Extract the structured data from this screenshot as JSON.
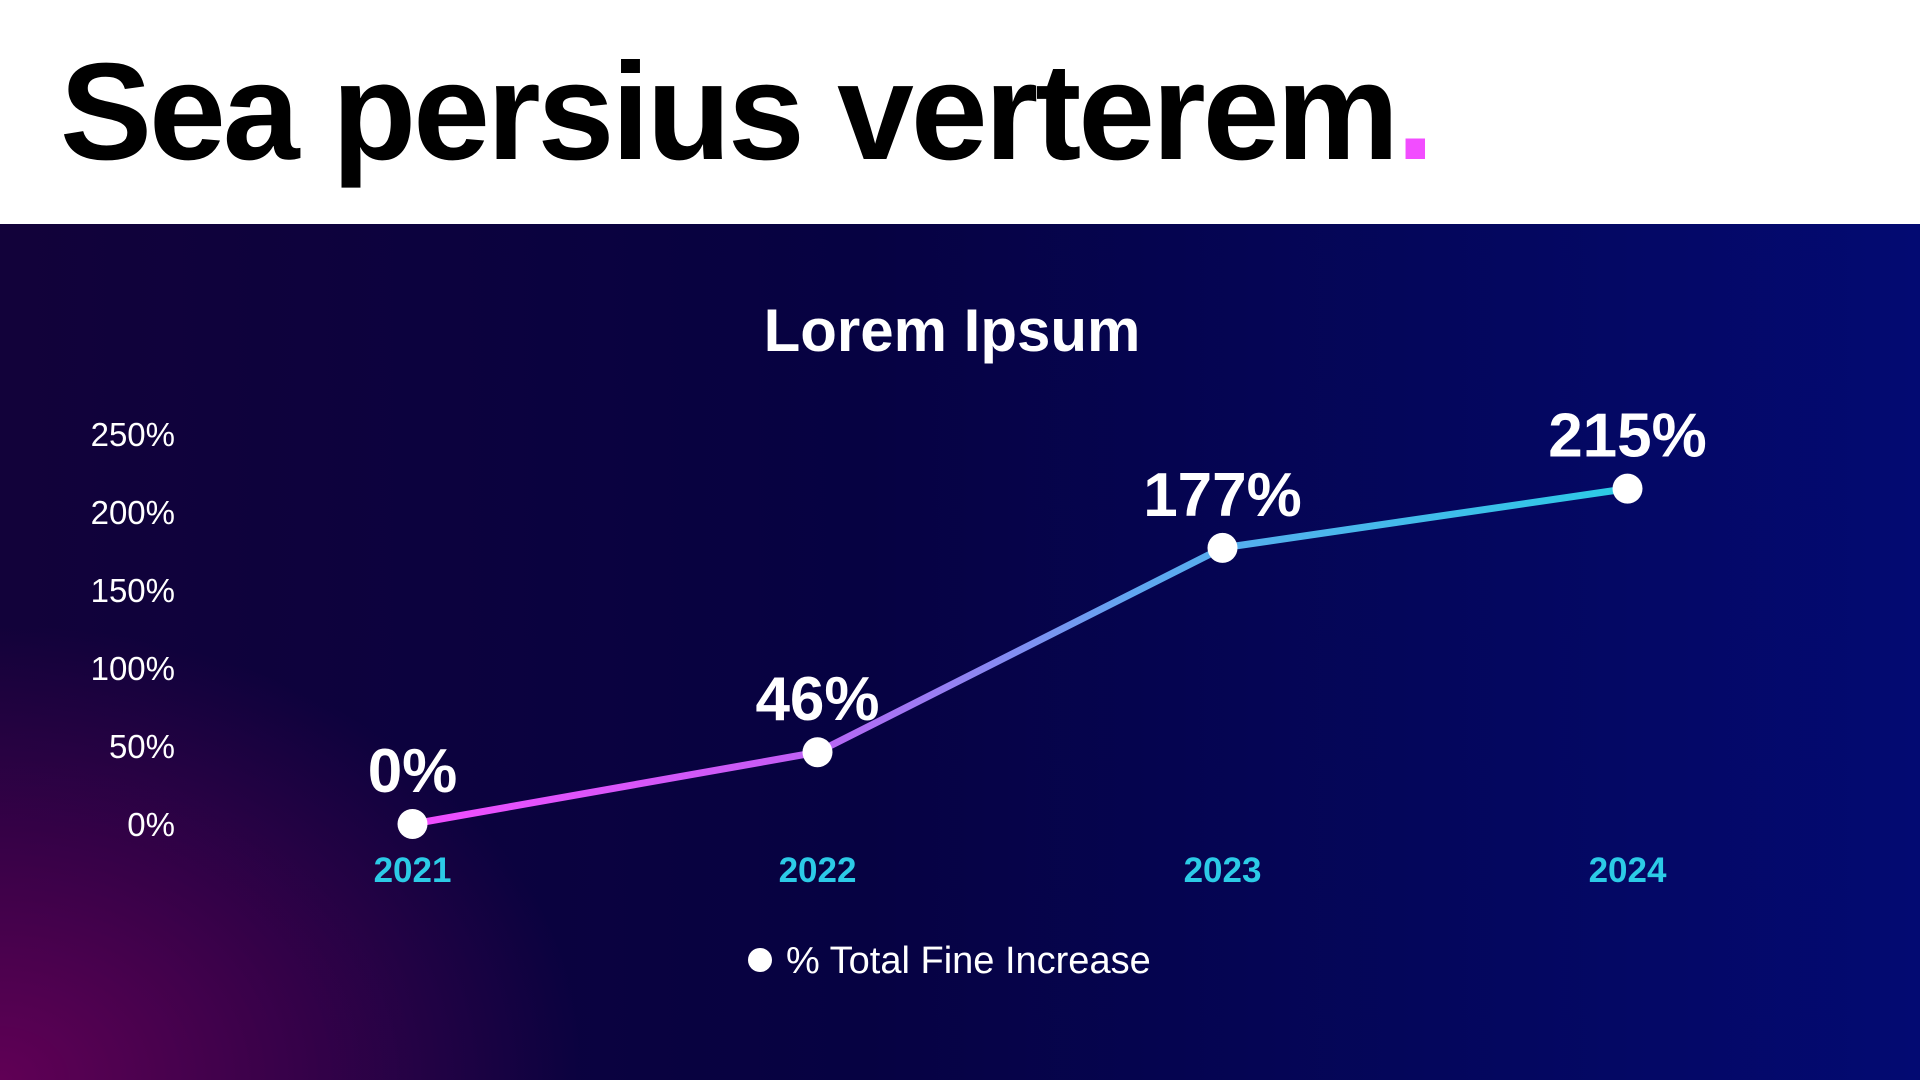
{
  "header": {
    "title": "Sea persius verterem",
    "title_punct": "."
  },
  "colors": {
    "accent": "#f24dff",
    "line_start": "#f24dff",
    "line_end": "#2ccbe6",
    "category_label": "#2ccbe6",
    "marker": "#ffffff"
  },
  "chart_data": {
    "type": "line",
    "title": "Lorem Ipsum",
    "xlabel": "",
    "ylabel": "",
    "categories": [
      "2021",
      "2022",
      "2023",
      "2024"
    ],
    "series": [
      {
        "name": "% Total Fine Increase",
        "values": [
          0,
          46,
          177,
          215
        ],
        "labels": [
          "0%",
          "46%",
          "177%",
          "215%"
        ]
      }
    ],
    "ylim": [
      0,
      250
    ],
    "yticks": [
      0,
      50,
      100,
      150,
      200,
      250
    ],
    "ytick_labels": [
      "0%",
      "50%",
      "100%",
      "150%",
      "200%",
      "250%"
    ],
    "grid": true,
    "legend": "bottom-center"
  }
}
